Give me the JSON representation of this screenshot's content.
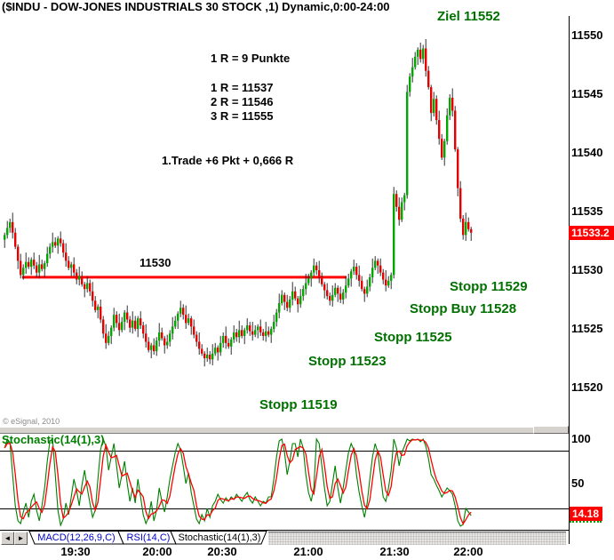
{
  "header": {
    "title": "($INDU - DOW-JONES INDUSTRIALS 30 STOCK ,1) Dynamic,0:00-24:00"
  },
  "annotations": {
    "target": "Ziel 11552",
    "r_unit": "1 R = 9 Punkte",
    "r1": "1 R = 11537",
    "r2": "2 R = 11546",
    "r3": "3 R = 11555",
    "trade": "1.Trade +6 Pkt + 0,666 R",
    "support_label": "11530",
    "stops": [
      "Stopp 11529",
      "Stopp Buy 11528",
      "Stopp 11525",
      "Stopp 11523",
      "Stopp 11519"
    ],
    "copyright": "© eSignal, 2010"
  },
  "indicator_header": "Stochastic(14(1),3)",
  "tabs": [
    {
      "label": "MACD(12,26,9,C)",
      "active": false
    },
    {
      "label": "RSI(14,C)",
      "active": false
    },
    {
      "label": "Stochastic(14(1),3)",
      "active": true
    }
  ],
  "tab_bar": {
    "scroll_left": "◄",
    "scroll_right": "►"
  },
  "colors": {
    "up": "#00A800",
    "down": "#E60000",
    "wick": "#1a1a1a",
    "support_line": "#FF0000",
    "stoch_k": "#008000",
    "stoch_d": "#FF0000",
    "annotation_green": "#007000",
    "badge_bg": "#FF0000"
  },
  "chart_data": {
    "type": "candlestick+stochastic",
    "symbol": "$INDU",
    "title": "($INDU - DOW-JONES INDUSTRIALS 30 STOCK ,1) Dynamic,0:00-24:00",
    "interval_minutes": 1,
    "price_ticks": [
      11550,
      11545,
      11540,
      11535,
      11530,
      11525,
      11520
    ],
    "last_price": "11533.2",
    "support_level": 11529.4,
    "support_line_x": [
      25,
      390
    ],
    "time_labels": [
      "19:30",
      "20:00",
      "20:30",
      "21:00",
      "21:30",
      "22:00"
    ],
    "first_open": 11532.6,
    "closes": [
      11533.0,
      11533.6,
      11534.1,
      11533.2,
      11532.0,
      11530.8,
      11529.6,
      11530.2,
      11530.7,
      11530.3,
      11530.9,
      11530.4,
      11529.8,
      11530.5,
      11530.1,
      11530.6,
      11531.4,
      11532.0,
      11532.4,
      11532.1,
      11532.7,
      11532.3,
      11531.5,
      11530.8,
      11530.2,
      11530.5,
      11529.8,
      11529.2,
      11529.5,
      11528.8,
      11528.4,
      11528.9,
      11528.2,
      11527.4,
      11526.6,
      11526.9,
      11525.8,
      11524.6,
      11523.8,
      11524.4,
      11525.1,
      11526.2,
      11525.5,
      11524.9,
      11525.6,
      11526.4,
      11525.8,
      11525.1,
      11525.7,
      11525.0,
      11525.9,
      11525.3,
      11524.6,
      11523.9,
      11523.2,
      11523.6,
      11523.1,
      11524.0,
      11524.7,
      11524.2,
      11523.6,
      11523.9,
      11524.6,
      11525.2,
      11525.7,
      11526.3,
      11526.8,
      11526.2,
      11525.5,
      11525.9,
      11525.2,
      11524.5,
      11523.9,
      11523.3,
      11522.9,
      11522.5,
      11522.8,
      11522.4,
      11522.9,
      11523.4,
      11523.0,
      11523.8,
      11524.4,
      11523.8,
      11523.5,
      11524.1,
      11524.7,
      11524.3,
      11524.9,
      11524.4,
      11524.9,
      11525.3,
      11524.8,
      11524.5,
      11524.9,
      11525.2,
      11524.7,
      11524.4,
      11524.8,
      11524.5,
      11525.0,
      11525.6,
      11526.4,
      11527.2,
      11527.9,
      11527.3,
      11526.8,
      11527.5,
      11528.2,
      11527.6,
      11527.1,
      11527.8,
      11528.4,
      11528.9,
      11529.3,
      11529.8,
      11530.4,
      11530.0,
      11529.4,
      11528.8,
      11528.3,
      11527.8,
      11527.4,
      11527.9,
      11528.5,
      11528.0,
      11527.5,
      11528.1,
      11528.7,
      11529.3,
      11529.9,
      11530.3,
      11529.6,
      11529.1,
      11528.4,
      11528.0,
      11528.6,
      11529.4,
      11530.2,
      11530.8,
      11530.4,
      11529.8,
      11529.2,
      11528.7,
      11529.1,
      11529.6,
      11536.5,
      11535.4,
      11534.3,
      11535.8,
      11536.4,
      11545.2,
      11546.5,
      11547.3,
      11548.2,
      11548.8,
      11548.0,
      11548.9,
      11547.0,
      11545.6,
      11543.4,
      11544.6,
      11542.8,
      11541.2,
      11539.6,
      11541.0,
      11543.2,
      11544.7,
      11543.6,
      11540.3,
      11537.0,
      11534.4,
      11533.0,
      11534.1,
      11533.5,
      11533.2
    ],
    "wick_up": [
      0.2,
      0.6,
      0.3,
      0.8,
      0.4
    ],
    "wick_down": [
      0.5,
      0.2,
      0.7,
      0.3,
      0.4
    ],
    "stochastic": {
      "params": "14(1),3",
      "ticks": [
        100,
        50
      ],
      "last": "14.18",
      "overbought_line": 87,
      "oversold_line": 22,
      "k": [
        90,
        100,
        96,
        60,
        25,
        8,
        5,
        18,
        28,
        12,
        30,
        38,
        20,
        8,
        25,
        45,
        75,
        98,
        100,
        60,
        20,
        3,
        10,
        28,
        15,
        35,
        55,
        42,
        25,
        48,
        65,
        45,
        28,
        12,
        20,
        55,
        88,
        100,
        92,
        65,
        80,
        95,
        70,
        45,
        60,
        75,
        50,
        30,
        45,
        28,
        55,
        35,
        15,
        5,
        12,
        30,
        8,
        20,
        45,
        30,
        18,
        35,
        55,
        70,
        85,
        95,
        88,
        70,
        50,
        62,
        40,
        25,
        10,
        5,
        15,
        8,
        22,
        12,
        25,
        30,
        38,
        32,
        28,
        34,
        30,
        35,
        32,
        38,
        34,
        30,
        36,
        40,
        32,
        28,
        35,
        30,
        25,
        30,
        28,
        35,
        35,
        55,
        80,
        98,
        100,
        85,
        60,
        75,
        95,
        95,
        80,
        100,
        90,
        60,
        40,
        30,
        45,
        100,
        95,
        70,
        45,
        25,
        30,
        50,
        70,
        45,
        28,
        45,
        65,
        85,
        95,
        88,
        60,
        40,
        25,
        12,
        28,
        55,
        80,
        95,
        85,
        60,
        35,
        30,
        45,
        65,
        100,
        90,
        70,
        85,
        92,
        100,
        98,
        100,
        99,
        100,
        97,
        100,
        92,
        78,
        60,
        55,
        48,
        42,
        35,
        40,
        45,
        42,
        38,
        25,
        8,
        2,
        4,
        22,
        18,
        14
      ]
    }
  }
}
